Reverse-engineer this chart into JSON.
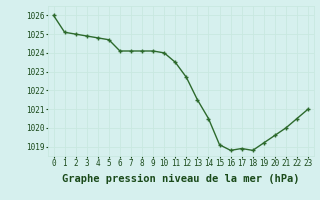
{
  "x": [
    0,
    1,
    2,
    3,
    4,
    5,
    6,
    7,
    8,
    9,
    10,
    11,
    12,
    13,
    14,
    15,
    16,
    17,
    18,
    19,
    20,
    21,
    22,
    23
  ],
  "y": [
    1026.0,
    1025.1,
    1025.0,
    1024.9,
    1024.8,
    1024.7,
    1024.1,
    1024.1,
    1024.1,
    1024.1,
    1024.0,
    1023.5,
    1022.7,
    1021.5,
    1020.5,
    1019.1,
    1018.8,
    1018.9,
    1018.8,
    1019.2,
    1019.6,
    1020.0,
    1020.5,
    1021.0
  ],
  "ylim": [
    1018.5,
    1026.5
  ],
  "yticks": [
    1019,
    1020,
    1021,
    1022,
    1023,
    1024,
    1025,
    1026
  ],
  "xticks": [
    0,
    1,
    2,
    3,
    4,
    5,
    6,
    7,
    8,
    9,
    10,
    11,
    12,
    13,
    14,
    15,
    16,
    17,
    18,
    19,
    20,
    21,
    22,
    23
  ],
  "xlabel": "Graphe pression niveau de la mer (hPa)",
  "line_color": "#2d6a2d",
  "marker": "+",
  "bg_color": "#d6f0ee",
  "grid_color": "#c8e8e0",
  "label_color": "#1a4a1a",
  "tick_label_size": 5.5,
  "xlabel_size": 7.5
}
